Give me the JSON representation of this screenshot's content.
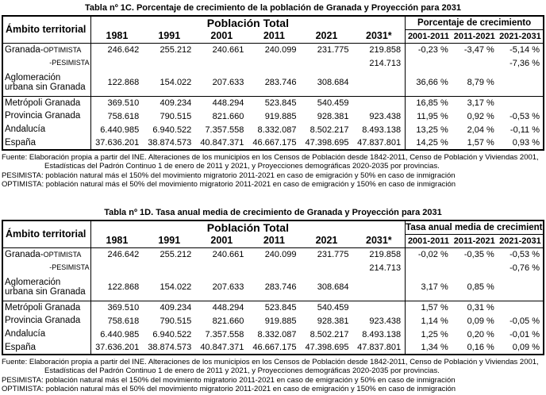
{
  "colors": {
    "background": "#ffffff",
    "text": "#000000",
    "border": "#000000"
  },
  "tables": [
    {
      "name": "tabla-1c",
      "title": "Tabla nº 1C. Porcentaje de crecimiento de la población de Granada y Proyección para 2031",
      "header": {
        "ambito": "Ámbito territorial",
        "group_population": "Población Total",
        "group_growth": "Porcentaje de crecimiento",
        "years": [
          "1981",
          "1991",
          "2001",
          "2011",
          "2021",
          "2031*"
        ],
        "periods": [
          "2001-2011",
          "2011-2021",
          "2021-2031"
        ]
      },
      "rows": [
        {
          "label": "Granada-",
          "label_caps": "OPTIMISTA",
          "label_align": "left",
          "sep_below": false,
          "values": [
            "246.642",
            "255.212",
            "240.661",
            "240.099",
            "231.775",
            "219.858"
          ],
          "pcts": [
            "-0,23 %",
            "-3,47 %",
            "-5,14 %"
          ]
        },
        {
          "label": "",
          "label_caps": "-PESIMISTA",
          "label_align": "right",
          "sep_below": false,
          "values": [
            "",
            "",
            "",
            "",
            "",
            "214.713"
          ],
          "pcts": [
            "",
            "",
            "-7,36 %"
          ]
        },
        {
          "label": "Aglomeración urbana sin Granada",
          "label_caps": "",
          "label_align": "left",
          "sep_below": true,
          "values": [
            "122.868",
            "154.022",
            "207.633",
            "283.746",
            "308.684",
            ""
          ],
          "pcts": [
            "36,66 %",
            "8,79 %",
            ""
          ]
        },
        {
          "label": "Metrópoli Granada",
          "label_caps": "",
          "label_align": "left",
          "sep_below": false,
          "values": [
            "369.510",
            "409.234",
            "448.294",
            "523.845",
            "540.459",
            ""
          ],
          "pcts": [
            "16,85 %",
            "3,17 %",
            ""
          ]
        },
        {
          "label": "Provincia Granada",
          "label_caps": "",
          "label_align": "left",
          "sep_below": false,
          "values": [
            "758.618",
            "790.515",
            "821.660",
            "919.885",
            "928.381",
            "923.438"
          ],
          "pcts": [
            "11,95 %",
            "0,92 %",
            "-0,53 %"
          ]
        },
        {
          "label": "Andalucía",
          "label_caps": "",
          "label_align": "left",
          "sep_below": false,
          "values": [
            "6.440.985",
            "6.940.522",
            "7.357.558",
            "8.332.087",
            "8.502.217",
            "8.493.138"
          ],
          "pcts": [
            "13,25 %",
            "2,04 %",
            "-0,11 %"
          ]
        },
        {
          "label": "España",
          "label_caps": "",
          "label_align": "left",
          "sep_below": false,
          "values": [
            "37.636.201",
            "38.874.573",
            "40.847.371",
            "46.667.175",
            "47.398.695",
            "47.837.801"
          ],
          "pcts": [
            "14,25 %",
            "1,57 %",
            "0,93 %"
          ]
        }
      ],
      "footnotes": [
        "Fuente: Elaboración propia a partir del INE. Alteraciones de los municipios en los Censos de Población desde 1842-2011, Censo de Población y Viviendas 2001,",
        "Estadísticas del Padrón Continuo 1 de enero de 2011 y 2021, y Proyecciones demográficas 2020-2035 por provincias.",
        "PESIMISTA: población natural más el 150% del movimiento migratorio 2011-2021 en caso de emigración y 50% en caso de inmigración",
        "OPTIMISTA: población natural más el 50% del movimiento migratorio 2011-2021 en caso de emigración y 150% en caso de inmigración"
      ]
    },
    {
      "name": "tabla-1d",
      "title": "Tabla nº 1D. Tasa anual media de crecimiento de Granada y Proyección para 2031",
      "header": {
        "ambito": "Ámbito territorial",
        "group_population": "Población Total",
        "group_growth": "Tasa anual media de crecimiento",
        "years": [
          "1981",
          "1991",
          "2001",
          "2011",
          "2021",
          "2031*"
        ],
        "periods": [
          "2001-2011",
          "2011-2021",
          "2021-2031"
        ]
      },
      "rows": [
        {
          "label": "Granada-",
          "label_caps": "OPTIMISTA",
          "label_align": "left",
          "sep_below": false,
          "values": [
            "246.642",
            "255.212",
            "240.661",
            "240.099",
            "231.775",
            "219.858"
          ],
          "pcts": [
            "-0,02 %",
            "-0,35 %",
            "-0,53 %"
          ]
        },
        {
          "label": "",
          "label_caps": "-PESIMISTA",
          "label_align": "right",
          "sep_below": false,
          "values": [
            "",
            "",
            "",
            "",
            "",
            "214.713"
          ],
          "pcts": [
            "",
            "",
            "-0,76 %"
          ]
        },
        {
          "label": "Aglomeración urbana sin Granada",
          "label_caps": "",
          "label_align": "left",
          "sep_below": true,
          "values": [
            "122.868",
            "154.022",
            "207.633",
            "283.746",
            "308.684",
            ""
          ],
          "pcts": [
            "3,17 %",
            "0,85 %",
            ""
          ]
        },
        {
          "label": "Metrópoli Granada",
          "label_caps": "",
          "label_align": "left",
          "sep_below": false,
          "values": [
            "369.510",
            "409.234",
            "448.294",
            "523.845",
            "540.459",
            ""
          ],
          "pcts": [
            "1,57 %",
            "0,31 %",
            ""
          ]
        },
        {
          "label": "Provincia Granada",
          "label_caps": "",
          "label_align": "left",
          "sep_below": false,
          "values": [
            "758.618",
            "790.515",
            "821.660",
            "919.885",
            "928.381",
            "923.438"
          ],
          "pcts": [
            "1,14 %",
            "0,09 %",
            "-0,05 %"
          ]
        },
        {
          "label": "Andalucía",
          "label_caps": "",
          "label_align": "left",
          "sep_below": false,
          "values": [
            "6.440.985",
            "6.940.522",
            "7.357.558",
            "8.332.087",
            "8.502.217",
            "8.493.138"
          ],
          "pcts": [
            "1,25 %",
            "0,20 %",
            "-0,01 %"
          ]
        },
        {
          "label": "España",
          "label_caps": "",
          "label_align": "left",
          "sep_below": false,
          "values": [
            "37.636.201",
            "38.874.573",
            "40.847.371",
            "46.667.175",
            "47.398.695",
            "47.837.801"
          ],
          "pcts": [
            "1,34 %",
            "0,16 %",
            "0,09 %"
          ]
        }
      ],
      "footnotes": [
        "Fuente: Elaboración propia a partir del INE. Alteraciones de los municipios en los Censos de Población desde 1842-2011, Censo de Población y Viviendas 2001,",
        "Estadísticas del Padrón Continuo 1 de enero de 2011 y 2021, y Proyecciones demográficas 2020-2035 por provincias.",
        "PESIMISTA: población natural más el 150% del movimiento migratorio 2011-2021 en caso de emigración y 50% en caso de inmigración",
        "OPTIMISTA: población natural más el 50% del movimiento migratorio 2011-2021 en caso de emigración y 150% en caso de inmigración"
      ]
    }
  ]
}
